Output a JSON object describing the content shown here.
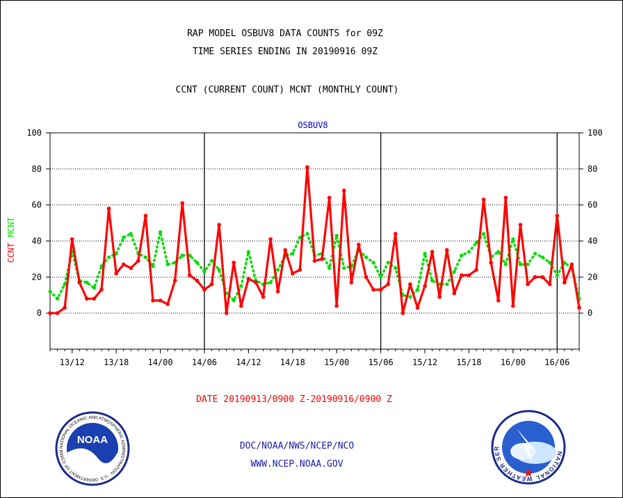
{
  "header": {
    "title_line1": "RAP MODEL OSBUV8 DATA COUNTS for 09Z",
    "title_line2": "TIME SERIES ENDING IN 20190916 09Z",
    "subtitle": "CCNT (CURRENT COUNT) MCNT (MONTHLY COUNT)"
  },
  "footer": {
    "date_range": "DATE 20190913/0900 Z-20190916/0900 Z",
    "org_line": "DOC/NOAA/NWS/NCEP/NCO",
    "url_line": "WWW.NCEP.NOAA.GOV"
  },
  "logos": {
    "noaa_text": "NOAA",
    "noaa_ring_text": "NATIONAL OCEANIC AND ATMOSPHERIC ADMINISTRATION · U.S. DEPARTMENT OF COMMERCE",
    "nws_ring_text": "NATIONAL WEATHER SERVICE"
  },
  "colors": {
    "ccnt": "#ff0000",
    "mcnt": "#00dd00",
    "station_label": "#0000cc",
    "footer_blue": "#1a1aaa"
  },
  "chart_data": {
    "type": "line",
    "title": "OSBUV8",
    "ylabel_left": [
      "CCNT",
      "MCNT"
    ],
    "ylim": [
      -20,
      100
    ],
    "yticks": [
      0,
      20,
      40,
      60,
      80,
      100
    ],
    "x_tick_labels": [
      "13/12",
      "13/18",
      "14/00",
      "14/06",
      "14/12",
      "14/18",
      "15/00",
      "15/06",
      "15/12",
      "15/18",
      "16/00",
      "16/06"
    ],
    "x_tick_index_start": 3,
    "x_tick_index_step": 6,
    "day_boundaries_index": [
      21,
      45,
      69
    ],
    "grid": true,
    "series": [
      {
        "name": "CCNT",
        "style": "solid",
        "values": [
          0,
          0,
          3,
          41,
          17,
          8,
          8,
          13,
          58,
          22,
          27,
          25,
          29,
          54,
          7,
          7,
          5,
          18,
          61,
          21,
          18,
          13,
          16,
          49,
          0,
          28,
          4,
          19,
          17,
          9,
          41,
          12,
          35,
          22,
          24,
          81,
          29,
          30,
          64,
          4,
          68,
          17,
          38,
          20,
          13,
          13,
          16,
          44,
          0,
          16,
          3,
          15,
          34,
          9,
          35,
          11,
          21,
          21,
          24,
          63,
          28,
          7,
          64,
          4,
          49,
          16,
          20,
          20,
          16,
          54,
          17,
          27,
          3
        ]
      },
      {
        "name": "MCNT",
        "style": "dotted",
        "values": [
          12,
          8,
          16,
          34,
          18,
          17,
          14,
          26,
          31,
          33,
          42,
          44,
          33,
          31,
          26,
          45,
          27,
          28,
          32,
          32,
          28,
          23,
          29,
          24,
          11,
          7,
          15,
          34,
          18,
          16,
          17,
          24,
          32,
          33,
          42,
          44,
          32,
          33,
          25,
          43,
          25,
          26,
          35,
          31,
          28,
          20,
          28,
          25,
          10,
          9,
          13,
          33,
          18,
          16,
          16,
          23,
          32,
          34,
          39,
          44,
          31,
          34,
          27,
          41,
          27,
          27,
          33,
          31,
          28,
          21,
          28,
          25,
          8
        ]
      }
    ]
  }
}
